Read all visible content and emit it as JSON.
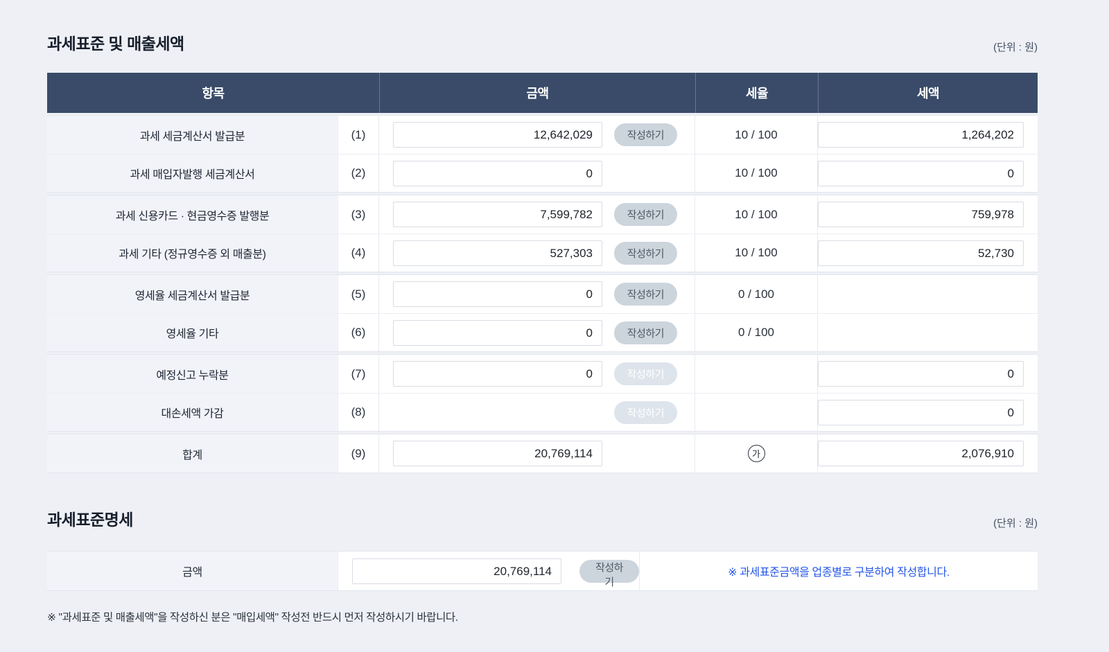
{
  "colors": {
    "page_background": "#eef0f5",
    "table_header_navy": "#394b68",
    "label_cell_bg": "#f2f3f9",
    "button_bg": "#ccd4dc",
    "button_disabled_bg": "#dee4eb",
    "note_blue": "#2456e8"
  },
  "section1": {
    "title": "과세표준 및 매출세액",
    "unit": "(단위 : 원)",
    "columns": {
      "item": "항목",
      "amount": "금액",
      "rate": "세율",
      "tax": "세액"
    },
    "write_button_label": "작성하기",
    "rows": [
      {
        "label": "과세 세금계산서 발급분",
        "no": "(1)",
        "amount": "12,642,029",
        "rate": "10 / 100",
        "tax": "1,264,202"
      },
      {
        "label": "과세 매입자발행 세금계산서",
        "no": "(2)",
        "amount": "0",
        "rate": "10 / 100",
        "tax": "0"
      },
      {
        "label": "과세 신용카드 · 현금영수증 발행분",
        "no": "(3)",
        "amount": "7,599,782",
        "rate": "10 / 100",
        "tax": "759,978"
      },
      {
        "label": "과세 기타 (정규영수증 외 매출분)",
        "no": "(4)",
        "amount": "527,303",
        "rate": "10 / 100",
        "tax": "52,730"
      },
      {
        "label": "영세율 세금계산서 발급분",
        "no": "(5)",
        "amount": "0",
        "rate": "0 / 100",
        "tax": ""
      },
      {
        "label": "영세율 기타",
        "no": "(6)",
        "amount": "0",
        "rate": "0 / 100",
        "tax": ""
      },
      {
        "label": "예정신고 누락분",
        "no": "(7)",
        "amount": "0",
        "rate": "",
        "tax": "0"
      },
      {
        "label": "대손세액 가감",
        "no": "(8)",
        "amount": "",
        "rate": "",
        "tax": "0"
      },
      {
        "label": "합계",
        "no": "(9)",
        "amount": "20,769,114",
        "rate_mark": "가",
        "tax": "2,076,910"
      }
    ]
  },
  "section2": {
    "title": "과세표준명세",
    "unit": "(단위 : 원)",
    "row_label": "금액",
    "amount": "20,769,114",
    "write_button_label": "작성하기",
    "note": "※ 과세표준금액을 업종별로 구분하여 작성합니다."
  },
  "footer_note": "※ \"과세표준 및 매출세액\"을 작성하신 분은 \"매입세액\" 작성전 반드시 먼저 작성하시기 바랍니다."
}
